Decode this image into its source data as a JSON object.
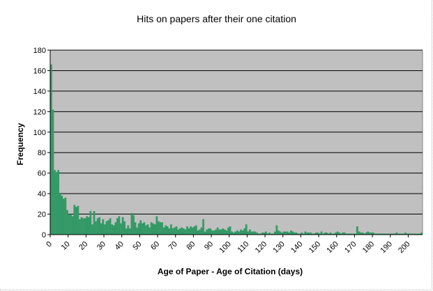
{
  "chart_data": {
    "type": "bar",
    "title": "Hits on papers after their one citation",
    "xlabel": "Age of Paper - Age of Citation (days)",
    "ylabel": "Frequency",
    "ylim": [
      0,
      180
    ],
    "y_ticks": [
      0,
      20,
      40,
      60,
      80,
      100,
      120,
      140,
      160,
      180
    ],
    "x_ticks": [
      0,
      10,
      20,
      30,
      40,
      50,
      60,
      70,
      80,
      90,
      100,
      110,
      120,
      130,
      140,
      150,
      160,
      170,
      180,
      190,
      200
    ],
    "xlim": [
      0,
      208
    ],
    "grid": true,
    "legend": "none",
    "bar_color": "#339966",
    "plot_background": "#c0c0c0",
    "categories": [
      0,
      1,
      2,
      3,
      4,
      5,
      6,
      7,
      8,
      9,
      10,
      11,
      12,
      13,
      14,
      15,
      16,
      17,
      18,
      19,
      20,
      21,
      22,
      23,
      24,
      25,
      26,
      27,
      28,
      29,
      30,
      31,
      32,
      33,
      34,
      35,
      36,
      37,
      38,
      39,
      40,
      41,
      42,
      43,
      44,
      45,
      46,
      47,
      48,
      49,
      50,
      51,
      52,
      53,
      54,
      55,
      56,
      57,
      58,
      59,
      60,
      61,
      62,
      63,
      64,
      65,
      66,
      67,
      68,
      69,
      70,
      71,
      72,
      73,
      74,
      75,
      76,
      77,
      78,
      79,
      80,
      81,
      82,
      83,
      84,
      85,
      86,
      87,
      88,
      89,
      90,
      91,
      92,
      93,
      94,
      95,
      96,
      97,
      98,
      99,
      100,
      101,
      102,
      103,
      104,
      105,
      106,
      107,
      108,
      109,
      110,
      111,
      112,
      113,
      114,
      115,
      116,
      117,
      118,
      119,
      120,
      121,
      122,
      123,
      124,
      125,
      126,
      127,
      128,
      129,
      130,
      131,
      132,
      133,
      134,
      135,
      136,
      137,
      138,
      139,
      140,
      141,
      142,
      143,
      144,
      145,
      146,
      147,
      148,
      149,
      150,
      151,
      152,
      153,
      154,
      155,
      156,
      157,
      158,
      159,
      160,
      161,
      162,
      163,
      164,
      165,
      166,
      167,
      168,
      169,
      170,
      171,
      172,
      173,
      174,
      175,
      176,
      177,
      178,
      179,
      180,
      181,
      182,
      183,
      184,
      185,
      186,
      187,
      188,
      189,
      190,
      191,
      192,
      193,
      194,
      195,
      196,
      197,
      198,
      199,
      200,
      201,
      202,
      203,
      204,
      205,
      206,
      207
    ],
    "values": [
      166,
      122,
      63,
      61,
      63,
      40,
      38,
      35,
      36,
      24,
      20,
      20,
      18,
      29,
      27,
      28,
      15,
      17,
      16,
      16,
      18,
      17,
      23,
      10,
      23,
      13,
      16,
      17,
      11,
      15,
      10,
      13,
      14,
      16,
      10,
      9,
      12,
      16,
      18,
      11,
      17,
      13,
      6,
      9,
      6,
      21,
      19,
      12,
      7,
      11,
      14,
      11,
      12,
      9,
      10,
      7,
      12,
      11,
      10,
      18,
      13,
      12,
      12,
      7,
      9,
      8,
      6,
      10,
      6,
      7,
      8,
      5,
      6,
      7,
      6,
      5,
      8,
      6,
      8,
      7,
      8,
      9,
      4,
      5,
      7,
      15,
      3,
      5,
      6,
      6,
      4,
      4,
      5,
      7,
      5,
      5,
      6,
      5,
      4,
      7,
      8,
      3,
      2,
      3,
      4,
      3,
      5,
      4,
      6,
      10,
      3,
      5,
      3,
      3,
      3,
      2,
      1,
      1,
      2,
      2,
      3,
      1,
      2,
      1,
      1,
      3,
      9,
      4,
      3,
      2,
      3,
      3,
      3,
      2,
      4,
      3,
      2,
      2,
      1,
      1,
      2,
      1,
      3,
      2,
      2,
      2,
      1,
      1,
      2,
      2,
      1,
      3,
      1,
      2,
      2,
      1,
      2,
      1,
      1,
      2,
      3,
      2,
      1,
      2,
      2,
      1,
      1,
      1,
      1,
      1,
      1,
      8,
      3,
      2,
      2,
      1,
      2,
      3,
      2,
      2,
      2,
      1,
      1,
      1,
      1,
      1,
      1,
      1,
      1,
      1,
      1,
      1,
      1,
      2,
      1,
      1,
      1,
      1,
      2,
      1,
      1,
      1,
      1,
      1,
      1,
      1,
      1,
      2
    ]
  }
}
